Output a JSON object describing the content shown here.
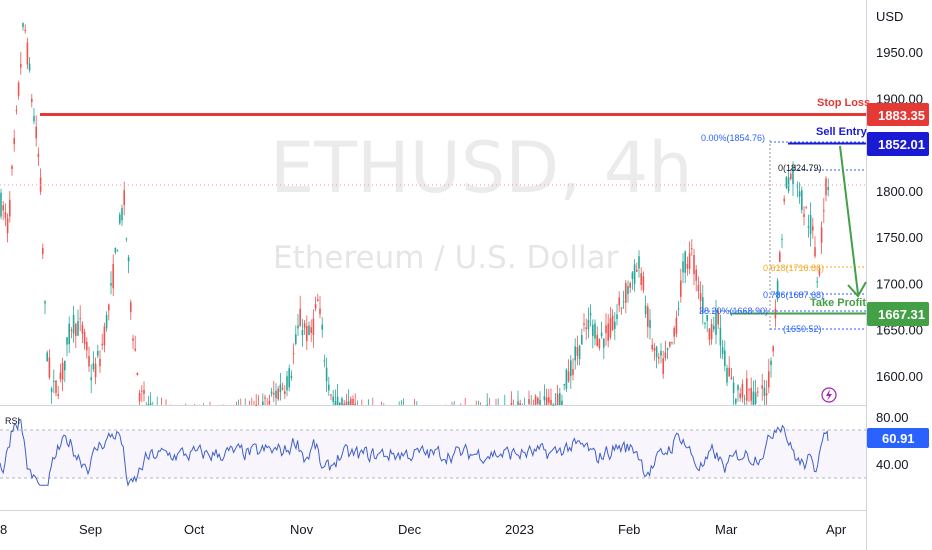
{
  "symbol": "ETHUSD",
  "timeframe": "4h",
  "watermark_title": "ETHUSD, 4h",
  "watermark_subtitle": "Ethereum / U.S. Dollar",
  "currency_label": "USD",
  "price_axis": {
    "ticks": [
      "1950.00",
      "1900.00",
      "1850.00",
      "1800.00",
      "1750.00",
      "1700.00",
      "1650.00",
      "1600.00"
    ],
    "tick_values": [
      1950,
      1900,
      1850,
      1800,
      1750,
      1700,
      1650,
      1600
    ]
  },
  "rsi_axis": {
    "label": "RSI",
    "ticks": [
      "80.00",
      "40.00"
    ],
    "current_value": "60.91"
  },
  "time_axis": {
    "labels": [
      "8",
      "Sep",
      "Oct",
      "Nov",
      "Dec",
      "2023",
      "Feb",
      "Mar",
      "Apr"
    ]
  },
  "levels": {
    "stop_loss": {
      "label": "Stop Loss",
      "price": "1883.35",
      "color": "#e53935"
    },
    "sell_entry": {
      "label": "Sell Entry",
      "price": "1852.01",
      "color": "#1a1ad4"
    },
    "take_profit": {
      "label": "Take Profit",
      "price": "1667.31",
      "color": "#43a047"
    }
  },
  "fib_labels": {
    "f0": "0.00%(1854.76)",
    "f0b": "0(1824.79)",
    "f618": "0.618(1716.86)",
    "f786": "0.786(1687.68)",
    "f38": "38.20%(1668.90)",
    "f_extra": "(1650.52)"
  },
  "colors": {
    "up": "#26a69a",
    "down": "#ef5350",
    "rsi_line": "#3f5fc7",
    "arrow": "#43a047",
    "grid": "#e0e3eb"
  },
  "chart_data": {
    "type": "candlestick",
    "title": "ETHUSD, 4h",
    "price_range": [
      1575,
      1985
    ],
    "key_levels": {
      "stop_loss": 1883.35,
      "sell_entry": 1852.01,
      "take_profit": 1667.31
    },
    "rsi_range": [
      20,
      90
    ],
    "rsi_current": 60.91
  }
}
